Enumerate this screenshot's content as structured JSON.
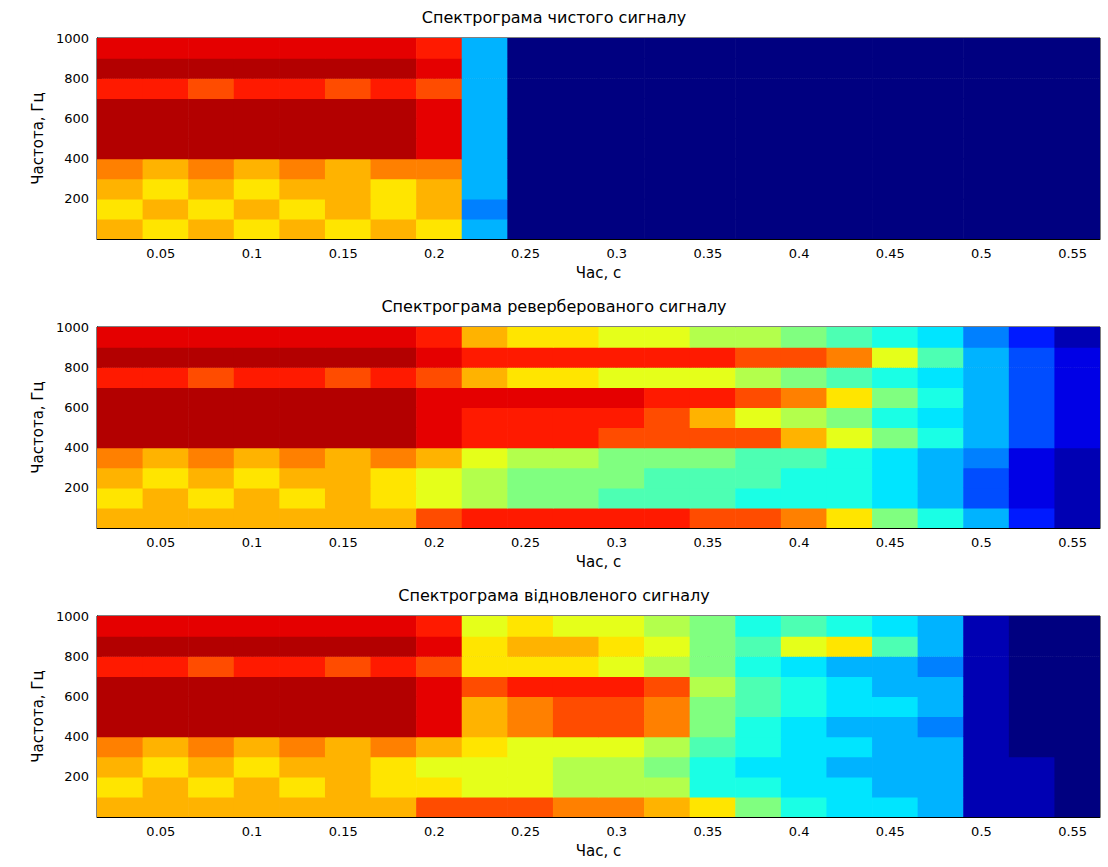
{
  "chart_data": [
    {
      "type": "heatmap",
      "title": "Спектрограма чистого сигналу",
      "xlabel": "Час, с",
      "ylabel": "Частота, Гц",
      "xlim": [
        0.015,
        0.565
      ],
      "xticks": [
        0.05,
        0.1,
        0.15,
        0.2,
        0.25,
        0.3,
        0.35,
        0.4,
        0.45,
        0.5,
        0.55
      ],
      "ylim": [
        0,
        1000
      ],
      "yticks": [
        200,
        400,
        600,
        800,
        1000
      ],
      "grid": true,
      "zlim": [
        0,
        10
      ],
      "x": [
        0.0275,
        0.0525,
        0.0775,
        0.1025,
        0.1275,
        0.1525,
        0.1775,
        0.2025,
        0.2275,
        0.2525,
        0.2775,
        0.3025,
        0.3275,
        0.3525,
        0.3775,
        0.4025,
        0.4275,
        0.4525,
        0.4775,
        0.5025,
        0.5275,
        0.5525
      ],
      "y": [
        50,
        150,
        250,
        350,
        450,
        550,
        650,
        750,
        850,
        950
      ],
      "z": [
        [
          7,
          6.5,
          7,
          6.5,
          7,
          6.5,
          7,
          6.5,
          3,
          0,
          0,
          0,
          0,
          0,
          0,
          0,
          0,
          0,
          0,
          0,
          0,
          0
        ],
        [
          6.5,
          7,
          6.5,
          7,
          6.5,
          7,
          6.5,
          7,
          2.5,
          0,
          0,
          0,
          0,
          0,
          0,
          0,
          0,
          0,
          0,
          0,
          0,
          0
        ],
        [
          7,
          6.5,
          7,
          6.5,
          7,
          7,
          6.5,
          7,
          3,
          0,
          0,
          0,
          0,
          0,
          0,
          0,
          0,
          0,
          0,
          0,
          0,
          0
        ],
        [
          7.5,
          7,
          7.5,
          7,
          7.5,
          7,
          7.5,
          7.5,
          3,
          0,
          0,
          0,
          0,
          0,
          0,
          0,
          0,
          0,
          0,
          0,
          0,
          0
        ],
        [
          9.5,
          9.5,
          9.5,
          9.5,
          9.5,
          9.5,
          9.5,
          9,
          3,
          0,
          0,
          0,
          0,
          0,
          0,
          0,
          0,
          0,
          0,
          0,
          0,
          0
        ],
        [
          9.5,
          9.5,
          9.5,
          9.5,
          9.5,
          9.5,
          9.5,
          9,
          3,
          0,
          0,
          0,
          0,
          0,
          0,
          0,
          0,
          0,
          0,
          0,
          0,
          0
        ],
        [
          9.5,
          9.5,
          9.5,
          9.5,
          9.5,
          9.5,
          9.5,
          9,
          3,
          0,
          0,
          0,
          0,
          0,
          0,
          0,
          0,
          0,
          0,
          0,
          0,
          0
        ],
        [
          8.5,
          8.5,
          8,
          8.5,
          8.5,
          8,
          8.5,
          8,
          3,
          0,
          0,
          0,
          0,
          0,
          0,
          0,
          0,
          0,
          0,
          0,
          0,
          0
        ],
        [
          9.5,
          9.5,
          9.5,
          9.5,
          9.5,
          9.5,
          9.5,
          9,
          3,
          0,
          0,
          0,
          0,
          0,
          0,
          0,
          0,
          0,
          0,
          0,
          0,
          0
        ],
        [
          9,
          9,
          9,
          9,
          9,
          9,
          9,
          8.5,
          3,
          0,
          0,
          0,
          0,
          0,
          0,
          0,
          0,
          0,
          0,
          0,
          0,
          0
        ]
      ]
    },
    {
      "type": "heatmap",
      "title": "Спектрограма реверберованого сигналу",
      "xlabel": "Час, с",
      "ylabel": "Частота, Гц",
      "xlim": [
        0.015,
        0.565
      ],
      "xticks": [
        0.05,
        0.1,
        0.15,
        0.2,
        0.25,
        0.3,
        0.35,
        0.4,
        0.45,
        0.5,
        0.55
      ],
      "ylim": [
        0,
        1000
      ],
      "yticks": [
        200,
        400,
        600,
        800,
        1000
      ],
      "grid": true,
      "zlim": [
        0,
        10
      ],
      "x": [
        0.0275,
        0.0525,
        0.0775,
        0.1025,
        0.1275,
        0.1525,
        0.1775,
        0.2025,
        0.2275,
        0.2525,
        0.2775,
        0.3025,
        0.3275,
        0.3525,
        0.3775,
        0.4025,
        0.4275,
        0.4525,
        0.4775,
        0.5025,
        0.5275,
        0.5525
      ],
      "y": [
        50,
        150,
        250,
        350,
        450,
        550,
        650,
        750,
        850,
        950
      ],
      "z": [
        [
          7,
          7,
          7,
          7,
          7,
          7,
          7,
          8,
          8.5,
          8.5,
          8.5,
          8.5,
          8.5,
          8,
          8,
          7.5,
          6.5,
          5,
          4,
          3,
          1.5,
          0.5
        ],
        [
          6.5,
          7,
          6.5,
          7,
          6.5,
          7,
          6.5,
          6,
          5.5,
          5,
          5,
          4.5,
          4.5,
          4.5,
          4,
          4,
          4,
          3.5,
          3,
          2,
          1,
          0.5
        ],
        [
          7,
          6.5,
          7,
          6.5,
          7,
          7,
          6.5,
          6,
          5.5,
          5,
          5,
          5,
          4.5,
          4.5,
          4.5,
          4,
          4,
          3.5,
          3,
          2,
          1,
          0.5
        ],
        [
          7.5,
          7,
          7.5,
          7,
          7.5,
          7,
          7.5,
          7,
          6,
          5.5,
          5.5,
          5,
          5,
          5,
          4.5,
          4.5,
          4,
          3.5,
          3,
          2.5,
          1,
          0.5
        ],
        [
          9.5,
          9.5,
          9.5,
          9.5,
          9.5,
          9.5,
          9.5,
          9,
          8.5,
          8.5,
          8.5,
          8,
          8,
          8,
          8,
          7,
          6,
          5,
          4,
          3,
          2,
          1
        ],
        [
          9.5,
          9.5,
          9.5,
          9.5,
          9.5,
          9.5,
          9.5,
          9,
          8.5,
          8.5,
          8.5,
          8.5,
          8,
          7,
          6,
          5.5,
          5,
          4,
          3.5,
          3,
          2,
          1
        ],
        [
          9.5,
          9.5,
          9.5,
          9.5,
          9.5,
          9.5,
          9.5,
          9,
          9,
          9,
          9,
          9,
          8.5,
          8.5,
          8,
          7.5,
          6.5,
          5,
          4,
          3,
          2,
          1
        ],
        [
          8.5,
          8.5,
          8,
          8.5,
          8.5,
          8,
          8.5,
          8,
          7,
          6.5,
          6.5,
          6,
          6,
          6,
          5.5,
          5,
          4.5,
          4,
          3.5,
          3,
          2,
          1
        ],
        [
          9.5,
          9.5,
          9.5,
          9.5,
          9.5,
          9.5,
          9.5,
          9,
          8.5,
          8.5,
          8.5,
          8.5,
          8.5,
          8.5,
          8,
          8,
          7.5,
          6,
          4.5,
          3,
          2,
          1
        ],
        [
          9,
          9,
          9,
          9,
          9,
          9,
          9,
          8.5,
          7,
          6.5,
          6.5,
          6,
          6,
          5.5,
          5.5,
          5,
          4.5,
          4,
          3.5,
          2.5,
          1.5,
          0.5
        ]
      ]
    },
    {
      "type": "heatmap",
      "title": "Спектрограма відновленого сигналу",
      "xlabel": "Час, с",
      "ylabel": "Частота, Гц",
      "xlim": [
        0.015,
        0.565
      ],
      "xticks": [
        0.05,
        0.1,
        0.15,
        0.2,
        0.25,
        0.3,
        0.35,
        0.4,
        0.45,
        0.5,
        0.55
      ],
      "ylim": [
        0,
        1000
      ],
      "yticks": [
        200,
        400,
        600,
        800,
        1000
      ],
      "grid": true,
      "zlim": [
        0,
        10
      ],
      "x": [
        0.0275,
        0.0525,
        0.0775,
        0.1025,
        0.1275,
        0.1525,
        0.1775,
        0.2025,
        0.2275,
        0.2525,
        0.2775,
        0.3025,
        0.3275,
        0.3525,
        0.3775,
        0.4025,
        0.4275,
        0.4525,
        0.4775,
        0.5025,
        0.5275,
        0.5525
      ],
      "y": [
        50,
        150,
        250,
        350,
        450,
        550,
        650,
        750,
        850,
        950
      ],
      "z": [
        [
          7,
          7,
          7,
          7,
          7,
          7,
          7,
          8,
          8,
          8,
          7.5,
          7.5,
          7,
          6.5,
          5,
          4,
          3.5,
          3.5,
          3,
          0.5,
          0.5,
          0
        ],
        [
          6.5,
          7,
          6.5,
          7,
          6.5,
          7,
          6.5,
          6.5,
          6,
          6,
          5.5,
          5.5,
          5.5,
          4,
          4,
          3.5,
          3.5,
          3,
          3,
          0.5,
          0.5,
          0
        ],
        [
          7,
          6.5,
          7,
          6.5,
          7,
          7,
          6.5,
          6,
          6,
          6,
          5.5,
          5.5,
          5,
          4,
          3.5,
          3.5,
          3,
          3,
          3,
          0.5,
          0.5,
          0
        ],
        [
          7.5,
          7,
          7.5,
          7,
          7.5,
          7,
          7.5,
          7,
          6.5,
          6,
          6,
          6,
          5.5,
          4.5,
          4,
          3.5,
          3.5,
          3,
          3,
          0.5,
          0,
          0
        ],
        [
          9.5,
          9.5,
          9.5,
          9.5,
          9.5,
          9.5,
          9.5,
          9,
          7,
          7.5,
          8,
          8,
          7.5,
          5,
          4,
          3.5,
          3,
          3,
          2.5,
          0.5,
          0,
          0
        ],
        [
          9.5,
          9.5,
          9.5,
          9.5,
          9.5,
          9.5,
          9.5,
          9,
          7,
          7.5,
          8,
          8,
          7.5,
          5,
          4.5,
          4,
          3.5,
          3.5,
          3,
          0.5,
          0,
          0
        ],
        [
          9.5,
          9.5,
          9.5,
          9.5,
          9.5,
          9.5,
          9.5,
          9,
          8,
          8.5,
          8.5,
          8.5,
          8,
          5.5,
          4.5,
          4,
          3.5,
          3,
          3,
          0.5,
          0,
          0
        ],
        [
          8.5,
          8.5,
          8,
          8.5,
          8.5,
          8,
          8.5,
          8,
          6.5,
          6.5,
          6.5,
          6,
          5.5,
          5,
          4,
          3.5,
          3,
          3,
          2.5,
          0.5,
          0,
          0
        ],
        [
          9.5,
          9.5,
          9.5,
          9.5,
          9.5,
          9.5,
          9.5,
          9,
          6.5,
          7,
          7,
          6.5,
          6,
          5,
          4.5,
          6,
          6.5,
          4.5,
          3,
          0.5,
          0,
          0
        ],
        [
          9,
          9,
          9,
          9,
          9,
          9,
          9,
          8.5,
          6,
          6.5,
          6,
          6,
          5.5,
          5,
          4,
          4.5,
          4,
          3.5,
          3,
          0.5,
          0,
          0
        ]
      ]
    }
  ]
}
